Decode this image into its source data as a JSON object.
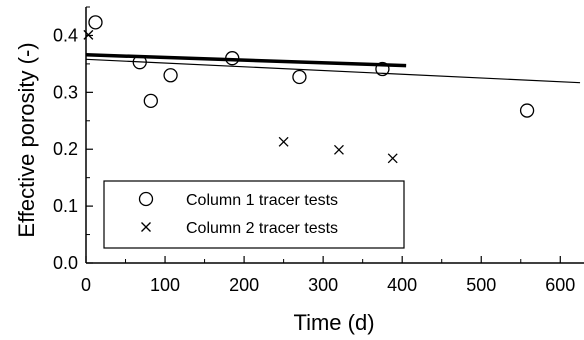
{
  "chart_data": {
    "type": "scatter",
    "xlabel": "Time (d)",
    "ylabel": "Effective porosity (-)",
    "xlim": [
      0,
      630
    ],
    "ylim": [
      0,
      0.45
    ],
    "xticks": [
      0,
      100,
      200,
      300,
      400,
      500,
      600
    ],
    "yticks": [
      0.0,
      0.1,
      0.2,
      0.3,
      0.4
    ],
    "ytick_labels": [
      "0.0",
      "0.1",
      "0.2",
      "0.3",
      "0.4"
    ],
    "legend_position": "bottom-left",
    "series": [
      {
        "name": "Column 1 tracer tests",
        "marker": "circle",
        "x": [
          12,
          68,
          82,
          107,
          185,
          270,
          375,
          558
        ],
        "y": [
          0.423,
          0.353,
          0.285,
          0.33,
          0.36,
          0.327,
          0.341,
          0.268
        ]
      },
      {
        "name": "Column 2 tracer tests",
        "marker": "cross",
        "x": [
          3,
          250,
          320,
          388
        ],
        "y": [
          0.401,
          0.213,
          0.199,
          0.184
        ]
      }
    ],
    "lines": [
      {
        "style": "thick",
        "x": [
          0,
          405
        ],
        "y": [
          0.366,
          0.347
        ]
      },
      {
        "style": "thin",
        "x": [
          0,
          625
        ],
        "y": [
          0.358,
          0.317
        ]
      }
    ]
  }
}
